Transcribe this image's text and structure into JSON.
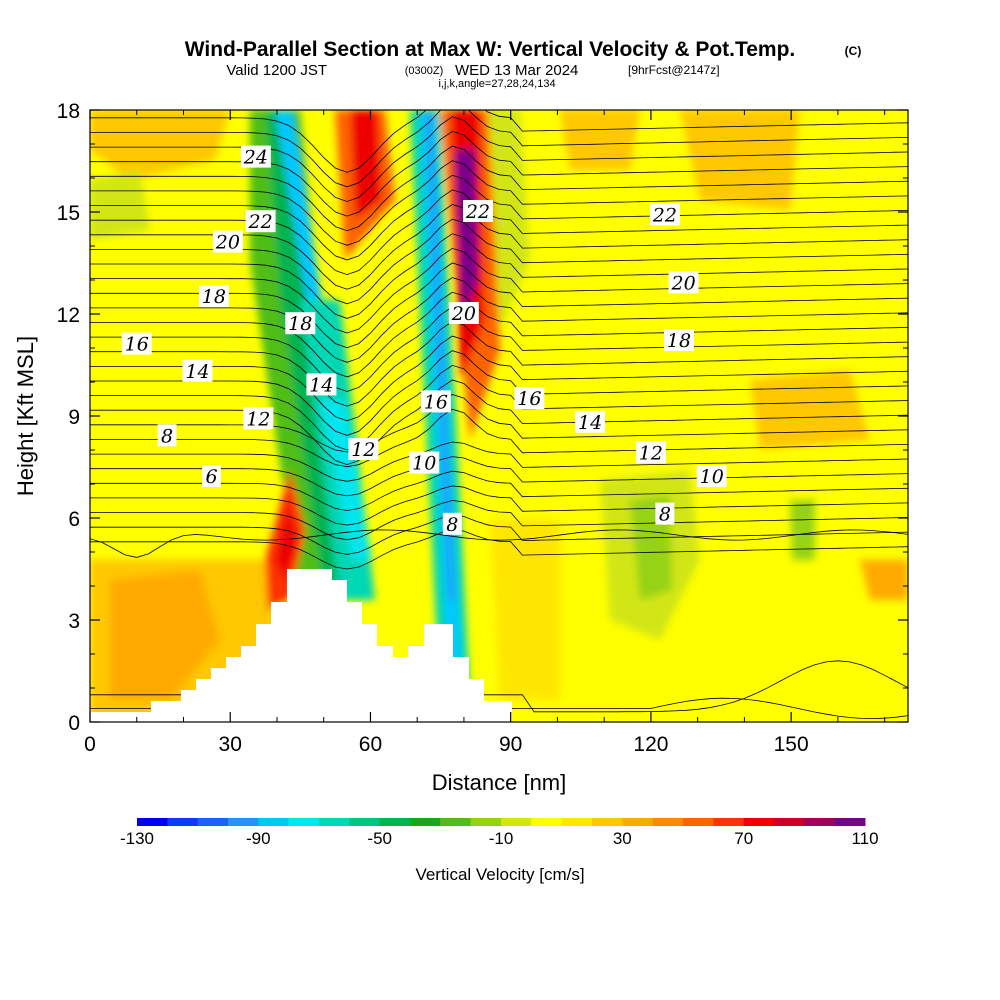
{
  "title": {
    "main": "Wind-Parallel Section at Max W: Vertical Velocity & Pot.Temp.",
    "main_suffix": "(C)",
    "valid_prefix": "Valid 1200 JST",
    "valid_utc": "(0300Z)",
    "valid_date": "WED 13 Mar 2024",
    "forecast": "[9hrFcst@2147z]",
    "indices": "i,j,k,angle=27,28,24,134"
  },
  "chart_data": {
    "type": "contour",
    "xlabel": "Distance [nm]",
    "ylabel": "Height [Kft MSL]",
    "xlim": [
      0,
      175
    ],
    "ylim": [
      0,
      18
    ],
    "x_ticks": [
      0,
      30,
      60,
      90,
      120,
      150
    ],
    "y_ticks": [
      0,
      3,
      6,
      9,
      12,
      15,
      18
    ],
    "shaded_field": "Vertical Velocity [cm/s]",
    "colorbar": {
      "label": "Vertical Velocity [cm/s]",
      "tick_labels": [
        "-130",
        "-90",
        "-50",
        "-10",
        "30",
        "70",
        "110"
      ],
      "min": -130,
      "max": 110,
      "step": 10,
      "colors": [
        "#0000ee",
        "#0a3cf0",
        "#1466f5",
        "#1e96fa",
        "#00c8ff",
        "#00e6ee",
        "#00d7b4",
        "#00c382",
        "#00b450",
        "#14aa14",
        "#50be14",
        "#96d214",
        "#d2e614",
        "#ffff00",
        "#ffe600",
        "#ffc800",
        "#ffaa00",
        "#ff8c00",
        "#ff6400",
        "#ff3200",
        "#ee0000",
        "#c80028",
        "#a0005a",
        "#78008c"
      ]
    },
    "terrain": "white step-shaped terrain peaks near 40-55 nm (to ~4.5 kft) and 72-80 nm (to ~2.9 kft)",
    "contour_field": "Potential Temperature [C]",
    "contour_labels": [
      {
        "text": "24",
        "x": 35.5,
        "y": 16.6
      },
      {
        "text": "22",
        "x": 36.5,
        "y": 14.7
      },
      {
        "text": "20",
        "x": 29.5,
        "y": 14.1
      },
      {
        "text": "18",
        "x": 26.5,
        "y": 12.5
      },
      {
        "text": "16",
        "x": 10,
        "y": 11.1
      },
      {
        "text": "14",
        "x": 23,
        "y": 10.3
      },
      {
        "text": "12",
        "x": 36,
        "y": 8.9
      },
      {
        "text": "8",
        "x": 16.5,
        "y": 8.4
      },
      {
        "text": "6",
        "x": 26,
        "y": 7.2
      },
      {
        "text": "18",
        "x": 45,
        "y": 11.7
      },
      {
        "text": "14",
        "x": 49.5,
        "y": 9.9
      },
      {
        "text": "12",
        "x": 58.5,
        "y": 8.0
      },
      {
        "text": "10",
        "x": 71.5,
        "y": 7.6
      },
      {
        "text": "8",
        "x": 77.5,
        "y": 5.8
      },
      {
        "text": "16",
        "x": 74,
        "y": 9.4
      },
      {
        "text": "20",
        "x": 80,
        "y": 12.0
      },
      {
        "text": "22",
        "x": 83,
        "y": 15.0
      },
      {
        "text": "22",
        "x": 123,
        "y": 14.9
      },
      {
        "text": "20",
        "x": 127,
        "y": 12.9
      },
      {
        "text": "18",
        "x": 126,
        "y": 11.2
      },
      {
        "text": "16",
        "x": 94,
        "y": 9.5
      },
      {
        "text": "14",
        "x": 107,
        "y": 8.8
      },
      {
        "text": "12",
        "x": 120,
        "y": 7.9
      },
      {
        "text": "10",
        "x": 133,
        "y": 7.2
      },
      {
        "text": "8",
        "x": 123,
        "y": 6.1
      }
    ]
  }
}
